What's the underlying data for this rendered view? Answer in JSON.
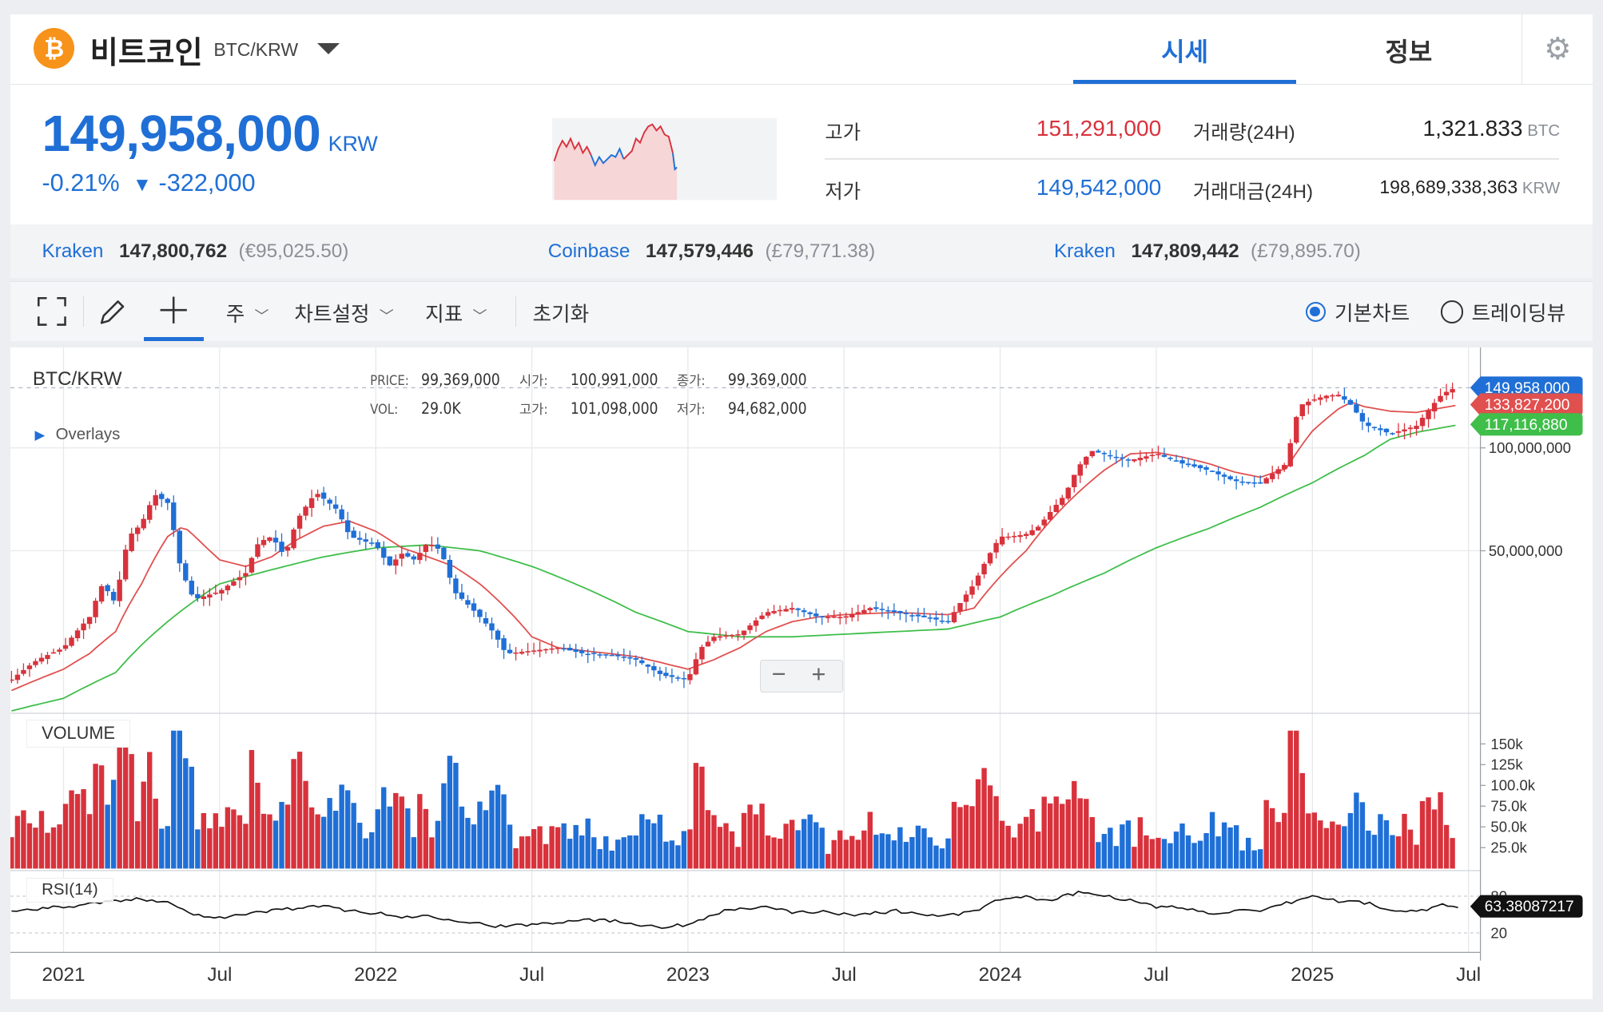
{
  "header": {
    "coin_name": "비트코인",
    "pair": "BTC/KRW",
    "logo_symbol": "₿",
    "tabs": [
      {
        "label": "시세"
      },
      {
        "label": "정보"
      }
    ]
  },
  "price": {
    "current": "149,958,000",
    "currency": "KRW",
    "change_pct": "-0.21%",
    "change_arrow": "▼",
    "change_abs": "-322,000"
  },
  "stats": {
    "high_label": "고가",
    "high_value": "151,291,000",
    "low_label": "저가",
    "low_value": "149,542,000",
    "volume_label": "거래량(24H)",
    "volume_value": "1,321.833",
    "volume_unit": "BTC",
    "amount_label": "거래대금(24H)",
    "amount_value": "198,689,338,363",
    "amount_unit": "KRW"
  },
  "exchanges": [
    {
      "name": "Kraken",
      "price": "147,800,762",
      "foreign": "(€95,025.50)"
    },
    {
      "name": "Coinbase",
      "price": "147,579,446",
      "foreign": "(£79,771.38)"
    },
    {
      "name": "Kraken",
      "price": "147,809,442",
      "foreign": "(£79,895.70)"
    }
  ],
  "toolbar": {
    "period": "주",
    "settings": "차트설정",
    "indicators": "지표",
    "reset": "초기화",
    "basic_chart": "기본차트",
    "trading_view": "트레이딩뷰"
  },
  "colors": {
    "up": "#d8323c",
    "down": "#1f6fd6",
    "ma_short": "#e0504f",
    "ma_long": "#3fbe4a",
    "accent": "#1f6fd6"
  },
  "chart_data": {
    "type": "candlestick",
    "symbol": "BTC/KRW",
    "interval": "주",
    "legend": {
      "price_label": "PRICE:",
      "price": "99,369,000",
      "open_label": "시가:",
      "open": "100,991,000",
      "close_label": "종가:",
      "close": "99,369,000",
      "vol_label": "VOL:",
      "vol": "29.0K",
      "high_label": "고가:",
      "high": "101,098,000",
      "low_label": "저가:",
      "low": "94,682,000"
    },
    "overlays_label": "Overlays",
    "y_scale": "log",
    "y_ticks": [
      {
        "value": 100000000,
        "label": "100,000,000"
      },
      {
        "value": 50000000,
        "label": "50,000,000"
      }
    ],
    "x_ticks": [
      {
        "t": 0,
        "label": "2021"
      },
      {
        "t": 6,
        "label": "Jul"
      },
      {
        "t": 12,
        "label": "2022"
      },
      {
        "t": 18,
        "label": "Jul"
      },
      {
        "t": 24,
        "label": "2023"
      },
      {
        "t": 30,
        "label": "Jul"
      },
      {
        "t": 36,
        "label": "2024"
      },
      {
        "t": 42,
        "label": "Jul"
      },
      {
        "t": 48,
        "label": "2025"
      },
      {
        "t": 54,
        "label": "Jul"
      }
    ],
    "x_unit": "months since Jan 2021",
    "price_tags": [
      {
        "label": "149,958,000",
        "color": "#1f6fd6",
        "value": 149958000
      },
      {
        "label": "133,827,200",
        "color": "#e0504f",
        "value": 133827200
      },
      {
        "label": "117,116,880",
        "color": "#3fbe4a",
        "value": 117116880
      }
    ],
    "close_series": [
      [
        -2,
        21
      ],
      [
        -1,
        24
      ],
      [
        -0.5,
        25
      ],
      [
        0,
        26
      ],
      [
        1,
        32
      ],
      [
        1.5,
        40
      ],
      [
        2,
        35
      ],
      [
        2.5,
        55
      ],
      [
        3,
        60
      ],
      [
        3.5,
        73
      ],
      [
        4,
        69
      ],
      [
        4.5,
        44
      ],
      [
        5,
        36
      ],
      [
        5.5,
        37
      ],
      [
        6,
        38
      ],
      [
        7,
        43
      ],
      [
        7.5,
        53
      ],
      [
        8,
        55
      ],
      [
        8.5,
        48
      ],
      [
        9,
        62
      ],
      [
        9.7,
        74
      ],
      [
        10,
        71
      ],
      [
        10.5,
        66
      ],
      [
        11,
        55
      ],
      [
        12,
        52
      ],
      [
        12.5,
        45
      ],
      [
        13,
        49
      ],
      [
        13.5,
        47
      ],
      [
        14,
        53
      ],
      [
        14.5,
        50
      ],
      [
        15,
        38
      ],
      [
        16,
        32
      ],
      [
        16.5,
        29
      ],
      [
        17,
        25
      ],
      [
        18,
        25.5
      ],
      [
        19,
        26
      ],
      [
        20,
        25
      ],
      [
        21,
        24.8
      ],
      [
        22,
        24
      ],
      [
        23,
        21.6
      ],
      [
        24,
        21
      ],
      [
        24.5,
        26
      ],
      [
        25,
        28
      ],
      [
        26,
        28.5
      ],
      [
        27,
        33
      ],
      [
        28,
        34
      ],
      [
        29,
        32
      ],
      [
        30,
        32
      ],
      [
        31,
        34
      ],
      [
        32,
        33
      ],
      [
        33,
        32
      ],
      [
        34,
        31
      ],
      [
        35,
        40
      ],
      [
        36,
        55
      ],
      [
        36.5,
        55
      ],
      [
        37,
        56
      ],
      [
        37.5,
        59
      ],
      [
        38,
        66
      ],
      [
        38.5,
        73
      ],
      [
        39,
        88
      ],
      [
        39.5,
        98
      ],
      [
        40,
        96
      ],
      [
        41,
        92
      ],
      [
        42,
        96
      ],
      [
        43,
        90
      ],
      [
        44,
        86
      ],
      [
        45,
        80
      ],
      [
        46,
        79
      ],
      [
        47,
        90
      ],
      [
        47.5,
        133
      ],
      [
        48,
        138
      ],
      [
        48.5,
        142
      ],
      [
        49,
        143
      ],
      [
        49.5,
        133
      ],
      [
        50,
        117
      ],
      [
        51,
        110
      ],
      [
        52,
        116
      ],
      [
        53,
        144
      ],
      [
        53.5,
        150
      ]
    ],
    "ma_short_series": [
      [
        -2,
        19.5
      ],
      [
        -1,
        21
      ],
      [
        0,
        22.5
      ],
      [
        1,
        25
      ],
      [
        2,
        29
      ],
      [
        3,
        40
      ],
      [
        4,
        55
      ],
      [
        4.6,
        59
      ],
      [
        5.5,
        51
      ],
      [
        6,
        47
      ],
      [
        7,
        45
      ],
      [
        8,
        48
      ],
      [
        9,
        54
      ],
      [
        10,
        59
      ],
      [
        11,
        61
      ],
      [
        12,
        57
      ],
      [
        13,
        51
      ],
      [
        14,
        48
      ],
      [
        15,
        45
      ],
      [
        16,
        40
      ],
      [
        17,
        34
      ],
      [
        18,
        28
      ],
      [
        19,
        26
      ],
      [
        20,
        25.5
      ],
      [
        22,
        24.5
      ],
      [
        24,
        22.5
      ],
      [
        25,
        24
      ],
      [
        26,
        26
      ],
      [
        27,
        29
      ],
      [
        28,
        31
      ],
      [
        29,
        32
      ],
      [
        30,
        32.5
      ],
      [
        32,
        33
      ],
      [
        34,
        32.5
      ],
      [
        35,
        34
      ],
      [
        36,
        42
      ],
      [
        37,
        50
      ],
      [
        38,
        62
      ],
      [
        39,
        74
      ],
      [
        40,
        86
      ],
      [
        41,
        96
      ],
      [
        42,
        97
      ],
      [
        43,
        94
      ],
      [
        44,
        90
      ],
      [
        45,
        85
      ],
      [
        46,
        82
      ],
      [
        47,
        87
      ],
      [
        48,
        112
      ],
      [
        49,
        130
      ],
      [
        49.5,
        136
      ],
      [
        50,
        132
      ],
      [
        51,
        128
      ],
      [
        52,
        127
      ],
      [
        53,
        131
      ],
      [
        53.7,
        133.8
      ]
    ],
    "ma_long_series": [
      [
        -2,
        17
      ],
      [
        0,
        18.5
      ],
      [
        2,
        22
      ],
      [
        4,
        31
      ],
      [
        6,
        40
      ],
      [
        8,
        44
      ],
      [
        10,
        48
      ],
      [
        12,
        51
      ],
      [
        14,
        52
      ],
      [
        16,
        50
      ],
      [
        18,
        45
      ],
      [
        20,
        39
      ],
      [
        22,
        33
      ],
      [
        24,
        29
      ],
      [
        26,
        28
      ],
      [
        28,
        28
      ],
      [
        30,
        28.5
      ],
      [
        32,
        29
      ],
      [
        34,
        29.5
      ],
      [
        36,
        32
      ],
      [
        38,
        37
      ],
      [
        40,
        43
      ],
      [
        42,
        51
      ],
      [
        44,
        58
      ],
      [
        46,
        67
      ],
      [
        48,
        79
      ],
      [
        50,
        95
      ],
      [
        51,
        106
      ],
      [
        52,
        111
      ],
      [
        53.7,
        117.1
      ]
    ],
    "volume": {
      "label": "VOLUME",
      "y_ticks": [
        "150k",
        "125k",
        "100.0k",
        "75.0k",
        "50.0k",
        "25.0k"
      ]
    },
    "rsi": {
      "label": "RSI(14)",
      "value": "63.38087217",
      "y_ticks": [
        {
          "value": 80,
          "label": "80"
        },
        {
          "value": 20,
          "label": "20"
        }
      ],
      "series": [
        [
          -2,
          55
        ],
        [
          -1,
          60
        ],
        [
          0,
          62
        ],
        [
          1,
          68
        ],
        [
          2,
          72
        ],
        [
          3,
          75
        ],
        [
          4,
          72
        ],
        [
          4.7,
          55
        ],
        [
          5,
          50
        ],
        [
          6,
          46
        ],
        [
          7,
          50
        ],
        [
          8,
          57
        ],
        [
          9,
          61
        ],
        [
          10,
          63
        ],
        [
          11,
          57
        ],
        [
          12,
          52
        ],
        [
          13,
          46
        ],
        [
          14,
          48
        ],
        [
          15,
          42
        ],
        [
          16,
          35
        ],
        [
          17,
          30
        ],
        [
          18,
          34
        ],
        [
          19,
          38
        ],
        [
          20,
          43
        ],
        [
          21,
          40
        ],
        [
          22,
          35
        ],
        [
          23,
          30
        ],
        [
          24,
          33
        ],
        [
          25,
          52
        ],
        [
          26,
          60
        ],
        [
          27,
          61
        ],
        [
          28,
          54
        ],
        [
          29,
          55
        ],
        [
          30,
          50
        ],
        [
          31,
          52
        ],
        [
          32,
          56
        ],
        [
          33,
          50
        ],
        [
          34,
          48
        ],
        [
          35,
          55
        ],
        [
          36,
          75
        ],
        [
          37,
          78
        ],
        [
          38,
          72
        ],
        [
          38.5,
          83
        ],
        [
          39,
          85
        ],
        [
          40,
          82
        ],
        [
          41,
          73
        ],
        [
          42,
          62
        ],
        [
          43,
          62
        ],
        [
          44,
          52
        ],
        [
          45,
          56
        ],
        [
          46,
          54
        ],
        [
          47,
          68
        ],
        [
          48,
          80
        ],
        [
          49,
          72
        ],
        [
          50,
          70
        ],
        [
          51,
          56
        ],
        [
          52,
          55
        ],
        [
          53,
          66
        ],
        [
          53.7,
          63.4
        ]
      ]
    }
  }
}
